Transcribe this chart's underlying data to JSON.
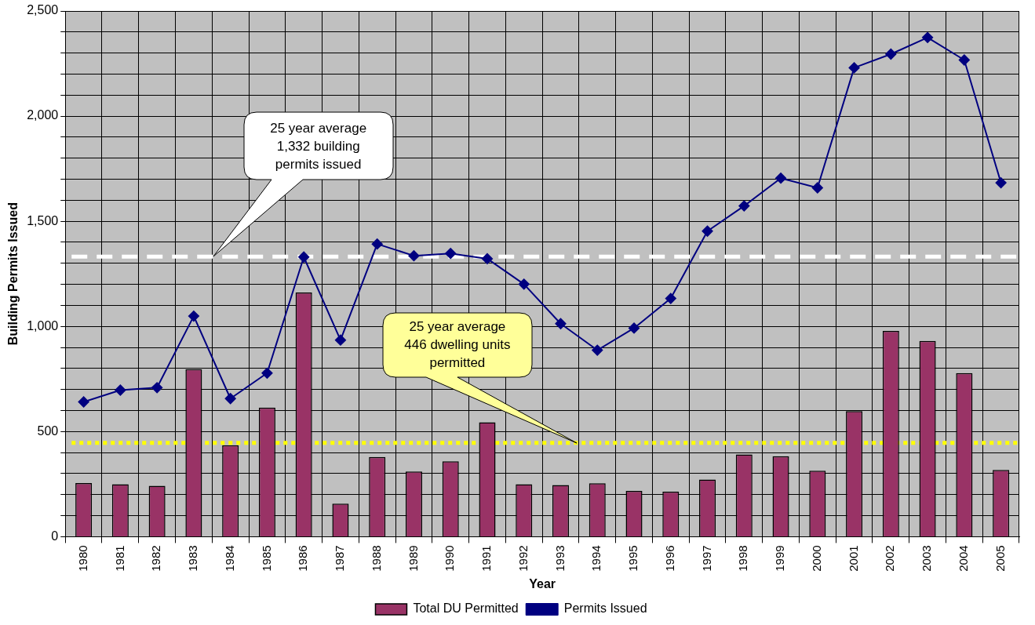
{
  "chart_data": {
    "type": "bar",
    "xlabel": "Year",
    "ylabel": "Building Permits Issued",
    "categories": [
      "1980",
      "1981",
      "1982",
      "1983",
      "1984",
      "1985",
      "1986",
      "1987",
      "1988",
      "1989",
      "1990",
      "1991",
      "1992",
      "1993",
      "1994",
      "1995",
      "1996",
      "1997",
      "1998",
      "1999",
      "2000",
      "2001",
      "2002",
      "2003",
      "2004",
      "2005"
    ],
    "series": [
      {
        "name": "Total DU Permitted",
        "color": "#993366",
        "values": [
          255,
          250,
          242,
          797,
          435,
          614,
          1161,
          157,
          379,
          310,
          359,
          544,
          250,
          246,
          254,
          218,
          214,
          272,
          391,
          383,
          314,
          597,
          979,
          931,
          778,
          318
        ]
      },
      {
        "name": "Permits Issued",
        "type": "line",
        "color": "#000080",
        "values": [
          641,
          697,
          709,
          1049,
          657,
          778,
          1330,
          935,
          1392,
          1336,
          1347,
          1322,
          1201,
          1013,
          887,
          992,
          1133,
          1453,
          1573,
          1705,
          1659,
          2230,
          2295,
          2374,
          2267,
          1683
        ]
      }
    ],
    "ylim": [
      0,
      2500
    ],
    "yticks": [
      0,
      {
        "value": 100,
        "label": null
      },
      {
        "value": 200,
        "label": null
      },
      {
        "value": 300,
        "label": null
      },
      {
        "value": 400,
        "label": null
      },
      {
        "value": 500,
        "label": "500"
      },
      {
        "value": 600,
        "label": null
      },
      {
        "value": 700,
        "label": null
      },
      {
        "value": 800,
        "label": null
      },
      {
        "value": 900,
        "label": null
      },
      {
        "value": 1000,
        "label": "1,000"
      },
      {
        "value": 1100,
        "label": null
      },
      {
        "value": 1200,
        "label": null
      },
      {
        "value": 1300,
        "label": null
      },
      {
        "value": 1400,
        "label": null
      },
      {
        "value": 1500,
        "label": "1,500"
      },
      {
        "value": 1600,
        "label": null
      },
      {
        "value": 1700,
        "label": null
      },
      {
        "value": 1800,
        "label": null
      },
      {
        "value": 1900,
        "label": null
      },
      {
        "value": 2000,
        "label": "2,000"
      },
      {
        "value": 2100,
        "label": null
      },
      {
        "value": 2200,
        "label": null
      },
      {
        "value": 2300,
        "label": null
      },
      {
        "value": 2400,
        "label": null
      },
      {
        "value": 2500,
        "label": "2,500"
      }
    ],
    "ref_lines": [
      {
        "axis": "y",
        "value": 1332,
        "color": "#ffffff",
        "line_style": "dashed"
      },
      {
        "axis": "y",
        "value": 446,
        "color": "#ffff00",
        "line_style": "dotted"
      }
    ],
    "annotations": [
      "25 year average\n1,332 building\npermits issued",
      "25 year average\n446 dwelling units\npermitted"
    ],
    "grid": true,
    "legend": "bottom",
    "marker": "diamond",
    "line_style": "solid"
  }
}
